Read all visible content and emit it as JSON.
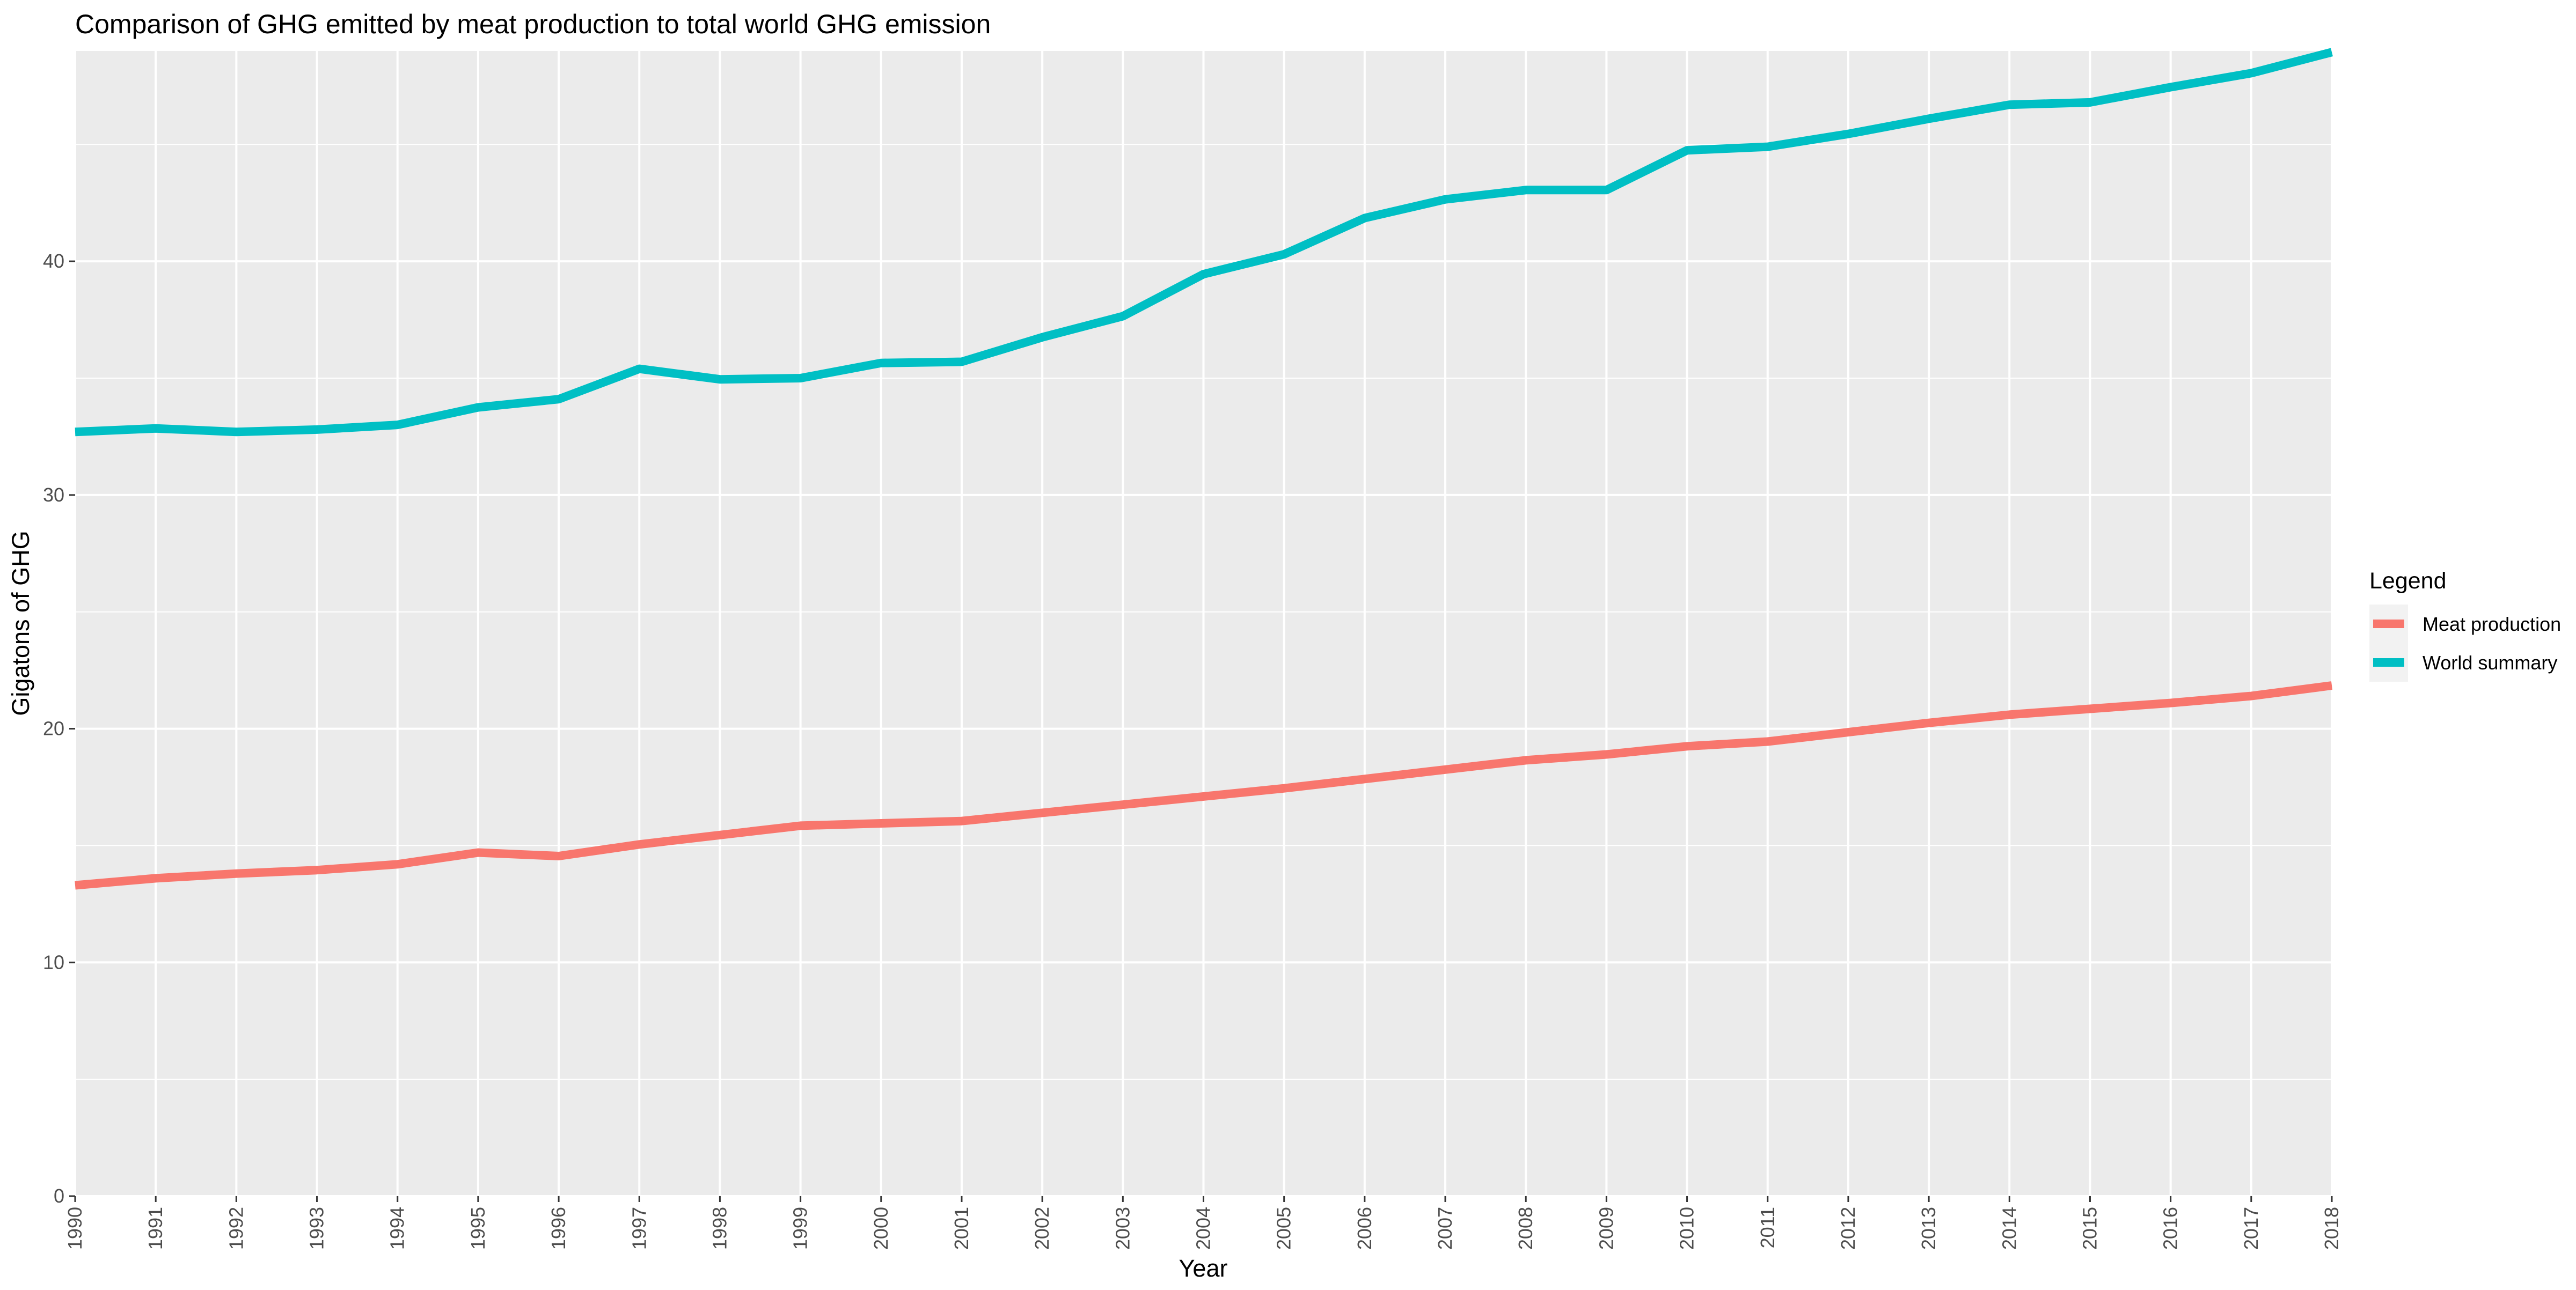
{
  "chart_data": {
    "type": "line",
    "title": "Comparison of GHG emitted by meat production to total world GHG emission",
    "xlabel": "Year",
    "ylabel": "Gigatons of GHG",
    "x": [
      1990,
      1991,
      1992,
      1993,
      1994,
      1995,
      1996,
      1997,
      1998,
      1999,
      2000,
      2001,
      2002,
      2003,
      2004,
      2005,
      2006,
      2007,
      2008,
      2009,
      2010,
      2011,
      2012,
      2013,
      2014,
      2015,
      2016,
      2017,
      2018
    ],
    "x_tick_labels": [
      "1990",
      "1991",
      "1992",
      "1993",
      "1994",
      "1995",
      "1996",
      "1997",
      "1998",
      "1999",
      "2000",
      "2001",
      "2002",
      "2003",
      "2004",
      "2005",
      "2006",
      "2007",
      "2008",
      "2009",
      "2010",
      "2011",
      "2012",
      "2013",
      "2014",
      "2015",
      "2016",
      "2017",
      "2018"
    ],
    "xlim": [
      1990,
      2018
    ],
    "y_ticks": [
      0,
      10,
      20,
      30,
      40
    ],
    "y_tick_labels": [
      "0",
      "10",
      "20",
      "30",
      "40"
    ],
    "ylim": [
      0,
      49
    ],
    "grid": true,
    "legend": {
      "title": "Legend",
      "position": "right"
    },
    "series": [
      {
        "name": "Meat production",
        "color": "#F8766D",
        "values": [
          13.3,
          13.6,
          13.8,
          13.95,
          14.2,
          14.7,
          14.55,
          15.05,
          15.45,
          15.85,
          15.95,
          16.05,
          16.4,
          16.75,
          17.1,
          17.45,
          17.85,
          18.25,
          18.65,
          18.9,
          19.25,
          19.45,
          19.85,
          20.25,
          20.6,
          20.85,
          21.1,
          21.4,
          21.85
        ]
      },
      {
        "name": "World summary",
        "color": "#00BFC4",
        "values": [
          32.7,
          32.85,
          32.7,
          32.8,
          33.0,
          33.75,
          34.1,
          35.4,
          34.95,
          35.0,
          35.65,
          35.7,
          36.75,
          37.65,
          39.45,
          40.3,
          41.85,
          42.65,
          43.05,
          43.05,
          44.75,
          44.9,
          45.45,
          46.1,
          46.7,
          46.8,
          47.45,
          48.05,
          48.95
        ]
      }
    ]
  }
}
